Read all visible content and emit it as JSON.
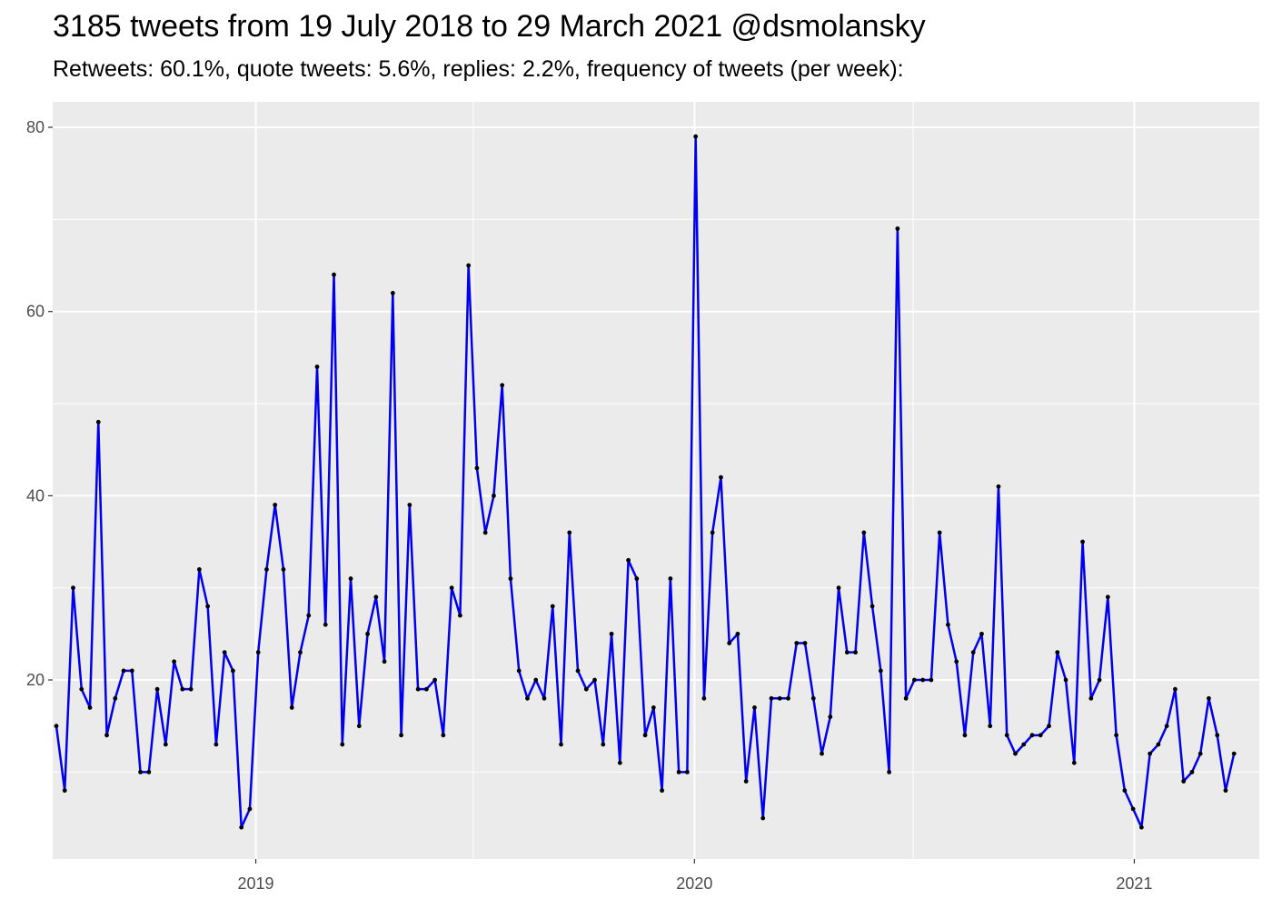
{
  "chart_data": {
    "type": "line",
    "title": "3185 tweets from 19 July 2018 to 29 March 2021 @dsmolansky",
    "subtitle": "Retweets: 60.1%, quote tweets: 5.6%, replies: 2.2%, frequency of tweets (per week):",
    "xlabel": "",
    "ylabel": "",
    "x_axis": {
      "start": "2018-07-16",
      "end": "2021-04-15",
      "ticks": [
        {
          "date": "2019-01-01",
          "label": "2019"
        },
        {
          "date": "2020-01-01",
          "label": "2020"
        },
        {
          "date": "2021-01-01",
          "label": "2021"
        }
      ]
    },
    "y_axis": {
      "ylim": [
        0,
        80
      ],
      "ticks": [
        20,
        40,
        60,
        80
      ]
    },
    "grid": true,
    "legend": "none",
    "colors": {
      "panel": "#ebebeb",
      "grid": "#ffffff",
      "line": "#0000ee",
      "point": "#000000"
    },
    "series": [
      {
        "x_start": "2018-07-19",
        "x_step_days": 7,
        "values": [
          15,
          8,
          30,
          19,
          17,
          48,
          14,
          18,
          21,
          21,
          10,
          10,
          19,
          13,
          22,
          19,
          19,
          32,
          28,
          13,
          23,
          21,
          4,
          6,
          23,
          32,
          39,
          32,
          17,
          23,
          27,
          54,
          26,
          64,
          13,
          31,
          15,
          25,
          29,
          22,
          62,
          14,
          39,
          19,
          19,
          20,
          14,
          30,
          27,
          65,
          43,
          36,
          40,
          52,
          31,
          21,
          18,
          20,
          18,
          28,
          13,
          36,
          21,
          19,
          20,
          13,
          25,
          11,
          33,
          31,
          14,
          17,
          8,
          31,
          10,
          10,
          79,
          18,
          36,
          42,
          24,
          25,
          9,
          17,
          5,
          18,
          18,
          18,
          24,
          24,
          18,
          12,
          16,
          30,
          23,
          23,
          36,
          28,
          21,
          10,
          69,
          18,
          20,
          20,
          20,
          36,
          26,
          22,
          14,
          23,
          25,
          15,
          41,
          14,
          12,
          13,
          14,
          14,
          15,
          23,
          20,
          11,
          35,
          18,
          20,
          29,
          14,
          8,
          6,
          4,
          12,
          13,
          15,
          19,
          9,
          10,
          12,
          18,
          14,
          8,
          12
        ]
      }
    ]
  }
}
